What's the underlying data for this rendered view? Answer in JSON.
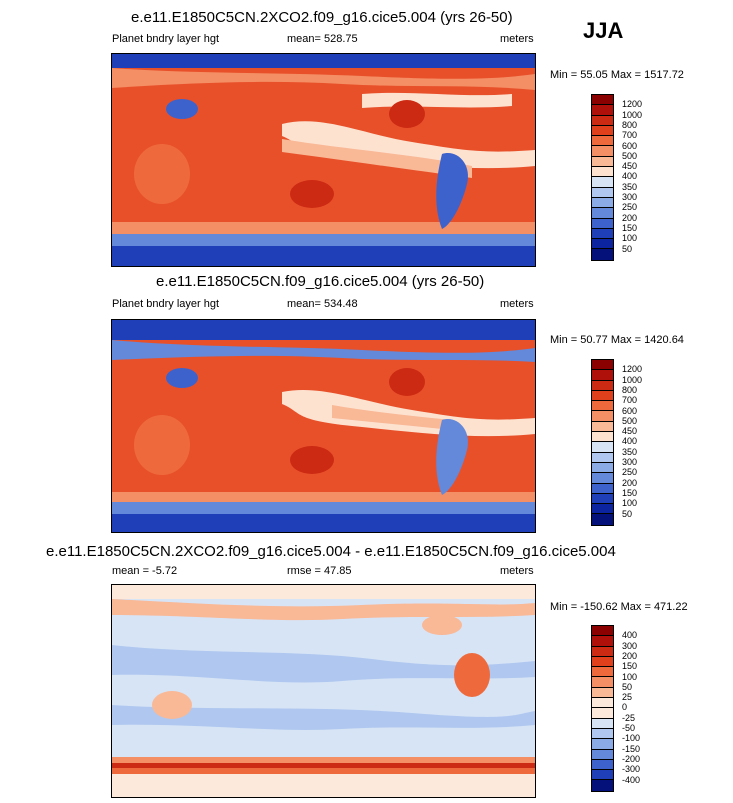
{
  "season": "JJA",
  "panels": [
    {
      "title": "e.e11.E1850C5CN.2XCO2.f09_g16.cice5.004 (yrs 26-50)",
      "left_label": "Planet bndry layer hgt",
      "center_label": "mean= 528.75",
      "right_label": "meters",
      "minmax": "Min =  55.05 Max = 1517.72",
      "levels": [
        "1200",
        "1000",
        "800",
        "700",
        "600",
        "500",
        "450",
        "400",
        "350",
        "300",
        "250",
        "200",
        "150",
        "100",
        "50"
      ],
      "colors": [
        "#8b0000",
        "#b0100a",
        "#cc2a12",
        "#e0401c",
        "#ee6a3c",
        "#f48e64",
        "#f9b896",
        "#fde2d0",
        "#d7e4f6",
        "#b0c8ef",
        "#8aabe6",
        "#6488da",
        "#3e62cc",
        "#1f3fb8",
        "#0c24a0",
        "#04117a"
      ]
    },
    {
      "title": "e.e11.E1850C5CN.f09_g16.cice5.004 (yrs 26-50)",
      "left_label": "Planet bndry layer hgt",
      "center_label": "mean= 534.48",
      "right_label": "meters",
      "minmax": "Min =  50.77 Max = 1420.64",
      "levels": [
        "1200",
        "1000",
        "800",
        "700",
        "600",
        "500",
        "450",
        "400",
        "350",
        "300",
        "250",
        "200",
        "150",
        "100",
        "50"
      ],
      "colors": [
        "#8b0000",
        "#b0100a",
        "#cc2a12",
        "#e0401c",
        "#ee6a3c",
        "#f48e64",
        "#f9b896",
        "#fde2d0",
        "#d7e4f6",
        "#b0c8ef",
        "#8aabe6",
        "#6488da",
        "#3e62cc",
        "#1f3fb8",
        "#0c24a0",
        "#04117a"
      ]
    },
    {
      "title": "e.e11.E1850C5CN.2XCO2.f09_g16.cice5.004 - e.e11.E1850C5CN.f09_g16.cice5.004",
      "left_label": "mean =  -5.72",
      "center_label": "rmse =  47.85",
      "right_label": "meters",
      "minmax": "Min = -150.62 Max = 471.22",
      "levels": [
        "400",
        "300",
        "200",
        "150",
        "100",
        "50",
        "25",
        "0",
        "-25",
        "-50",
        "-100",
        "-150",
        "-200",
        "-300",
        "-400"
      ],
      "colors": [
        "#8b0000",
        "#b0100a",
        "#cc2a12",
        "#e0401c",
        "#ee6a3c",
        "#f48e64",
        "#f9b896",
        "#fde8dc",
        "#fde8dc",
        "#d7e4f6",
        "#b0c8ef",
        "#8aabe6",
        "#6488da",
        "#3e62cc",
        "#1f3fb8",
        "#04117a"
      ]
    }
  ]
}
